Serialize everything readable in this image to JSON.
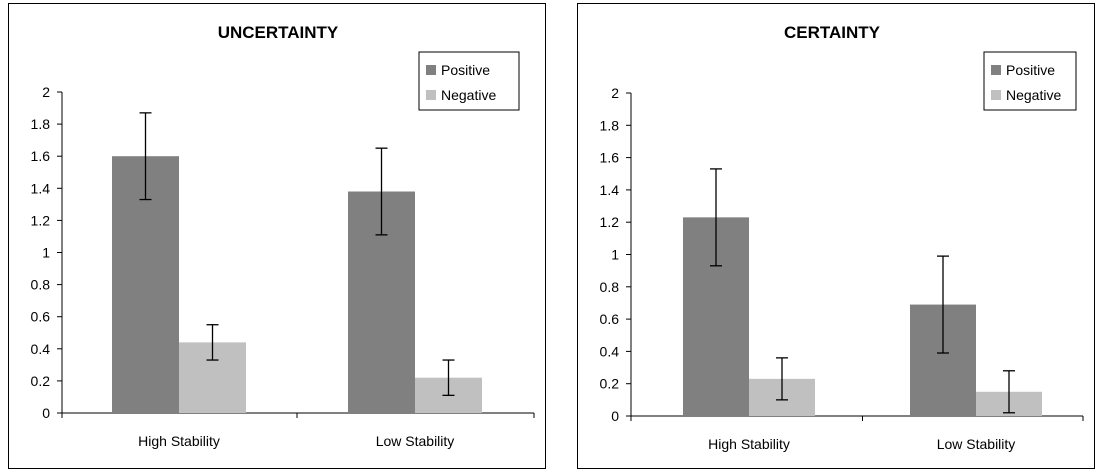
{
  "chart_data": [
    {
      "type": "bar",
      "title": "UNCERTAINTY",
      "categories": [
        "High Stability",
        "Low Stability"
      ],
      "series": [
        {
          "name": "Positive",
          "values": [
            1.6,
            1.38
          ],
          "errors": [
            0.27,
            0.27
          ],
          "color": "#808080"
        },
        {
          "name": "Negative",
          "values": [
            0.44,
            0.22
          ],
          "errors": [
            0.11,
            0.11
          ],
          "color": "#c0c0c0"
        }
      ],
      "ylim": [
        0,
        2
      ],
      "yticks": [
        "0",
        "0.2",
        "0.4",
        "0.6",
        "0.8",
        "1",
        "1.2",
        "1.4",
        "1.6",
        "1.8",
        "2"
      ],
      "grid": false,
      "legend": "top-right"
    },
    {
      "type": "bar",
      "title": "CERTAINTY",
      "categories": [
        "High Stability",
        "Low Stability"
      ],
      "series": [
        {
          "name": "Positive",
          "values": [
            1.23,
            0.69
          ],
          "errors": [
            0.3,
            0.3
          ],
          "color": "#808080"
        },
        {
          "name": "Negative",
          "values": [
            0.23,
            0.15
          ],
          "errors": [
            0.13,
            0.13
          ],
          "color": "#c0c0c0"
        }
      ],
      "ylim": [
        0,
        2
      ],
      "yticks": [
        "0",
        "0.2",
        "0.4",
        "0.6",
        "0.8",
        "1",
        "1.2",
        "1.4",
        "1.6",
        "1.8",
        "2"
      ],
      "grid": false,
      "legend": "top-right"
    }
  ]
}
